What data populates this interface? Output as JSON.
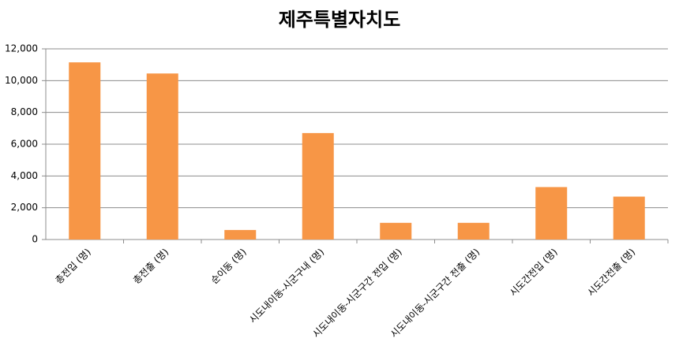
{
  "chart_data": {
    "type": "bar",
    "title": "제주특별자치도",
    "categories": [
      "총전입 (명)",
      "총전출 (명)",
      "순이동 (명)",
      "시도내이동-시군구내 (명)",
      "시도내이동-시군구간 전입 (명)",
      "시도내이동-시군구간 전출 (명)",
      "시도간전입 (명)",
      "시도간전출 (명)"
    ],
    "values": [
      11150,
      10450,
      600,
      6700,
      1050,
      1050,
      3300,
      2700
    ],
    "color": "#f79646",
    "ylim": [
      0,
      12000
    ],
    "yticks": [
      0,
      {
        "value": 2000,
        "label": "2,000"
      },
      {
        "value": 4000,
        "label": "4,000"
      },
      {
        "value": 6000,
        "label": "6,000"
      },
      {
        "value": 8000,
        "label": "8,000"
      },
      {
        "value": 10000,
        "label": "10,000"
      },
      {
        "value": 12000,
        "label": "12,000"
      }
    ],
    "grid": true
  }
}
